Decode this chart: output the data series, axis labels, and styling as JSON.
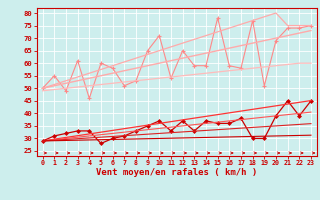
{
  "xlabel": "Vent moyen/en rafales ( km/h )",
  "background_color": "#cdeeed",
  "grid_color": "#ffffff",
  "x": [
    0,
    1,
    2,
    3,
    4,
    5,
    6,
    7,
    8,
    9,
    10,
    11,
    12,
    13,
    14,
    15,
    16,
    17,
    18,
    19,
    20,
    21,
    22,
    23
  ],
  "series": [
    {
      "name": "rafales_max",
      "color": "#ff8888",
      "lw": 0.8,
      "marker": "+",
      "ms": 3.5,
      "mew": 0.8,
      "values": [
        50,
        55,
        49,
        61,
        46,
        60,
        58,
        51,
        53,
        65,
        71,
        54,
        65,
        59,
        59,
        78,
        59,
        58,
        77,
        51,
        69,
        74,
        74,
        75
      ]
    },
    {
      "name": "rafales_trend_high",
      "color": "#ffaaaa",
      "lw": 0.9,
      "marker": null,
      "ms": 0,
      "mew": 0,
      "values": [
        50,
        51.5,
        53,
        54.5,
        56,
        57.5,
        59,
        60.5,
        62,
        63.5,
        65,
        66.5,
        68,
        69.5,
        71,
        72.5,
        74,
        75.5,
        77,
        78.5,
        80,
        75,
        75,
        75
      ]
    },
    {
      "name": "rafales_trend_low",
      "color": "#ffbbbb",
      "lw": 0.9,
      "marker": null,
      "ms": 0,
      "mew": 0,
      "values": [
        49,
        49.5,
        50,
        50.5,
        51,
        51.5,
        52,
        52.5,
        53,
        53.5,
        54,
        54.5,
        55,
        55.5,
        56,
        56.5,
        57,
        57.5,
        58,
        58.5,
        59,
        59.5,
        60,
        60
      ]
    },
    {
      "name": "rafales_trend_mid",
      "color": "#ffaaaa",
      "lw": 1.0,
      "marker": null,
      "ms": 0,
      "mew": 0,
      "values": [
        50,
        51,
        52,
        53,
        54,
        55,
        56,
        57,
        58,
        59,
        60,
        61,
        62,
        63,
        64,
        65,
        66,
        67,
        68,
        69,
        70,
        71,
        72,
        73
      ]
    },
    {
      "name": "vent_moyen",
      "color": "#cc0000",
      "lw": 0.9,
      "marker": "D",
      "ms": 2.0,
      "mew": 0.5,
      "values": [
        29,
        31,
        32,
        33,
        33,
        28,
        30,
        31,
        33,
        35,
        37,
        33,
        37,
        33,
        37,
        36,
        36,
        38,
        30,
        30,
        39,
        45,
        39,
        45
      ]
    },
    {
      "name": "vent_trend1",
      "color": "#ff3333",
      "lw": 0.9,
      "marker": null,
      "ms": 0,
      "mew": 0,
      "values": [
        29,
        29.7,
        30.4,
        31.1,
        31.8,
        32.5,
        33.2,
        33.9,
        34.6,
        35.3,
        36.0,
        36.7,
        37.4,
        38.1,
        38.8,
        39.5,
        40.2,
        40.9,
        41.6,
        42.3,
        43.0,
        43.7,
        44.4,
        45.1
      ]
    },
    {
      "name": "vent_trend2",
      "color": "#ff5555",
      "lw": 0.8,
      "marker": null,
      "ms": 0,
      "mew": 0,
      "values": [
        29,
        29.5,
        30.0,
        30.5,
        31.0,
        31.5,
        32.0,
        32.5,
        33.0,
        33.5,
        34.0,
        34.5,
        35.0,
        35.5,
        36.0,
        36.5,
        37.0,
        37.5,
        38.0,
        38.5,
        39.0,
        39.5,
        40.0,
        40.5
      ]
    },
    {
      "name": "vent_trend3",
      "color": "#dd2222",
      "lw": 0.8,
      "marker": null,
      "ms": 0,
      "mew": 0,
      "values": [
        29,
        29.3,
        29.6,
        29.9,
        30.2,
        30.5,
        30.8,
        31.1,
        31.4,
        31.7,
        32.0,
        32.3,
        32.6,
        32.9,
        33.2,
        33.5,
        33.8,
        34.1,
        34.4,
        34.7,
        35.0,
        35.3,
        35.6,
        35.9
      ]
    },
    {
      "name": "vent_trend4",
      "color": "#cc0000",
      "lw": 0.8,
      "marker": null,
      "ms": 0,
      "mew": 0,
      "values": [
        29,
        29.1,
        29.2,
        29.3,
        29.4,
        29.5,
        29.6,
        29.7,
        29.8,
        29.9,
        30.0,
        30.1,
        30.2,
        30.3,
        30.4,
        30.5,
        30.6,
        30.7,
        30.8,
        30.9,
        31.0,
        31.1,
        31.2,
        31.3
      ]
    }
  ],
  "ylim": [
    23,
    82
  ],
  "yticks": [
    25,
    30,
    35,
    40,
    45,
    50,
    55,
    60,
    65,
    70,
    75,
    80
  ],
  "xlim": [
    -0.5,
    23.5
  ],
  "xticks": [
    0,
    1,
    2,
    3,
    4,
    5,
    6,
    7,
    8,
    9,
    10,
    11,
    12,
    13,
    14,
    15,
    16,
    17,
    18,
    19,
    20,
    21,
    22,
    23
  ],
  "arrow_color": "#cc0000",
  "xlabel_color": "#cc0000",
  "tick_color": "#cc0000",
  "axis_color": "#cc0000"
}
